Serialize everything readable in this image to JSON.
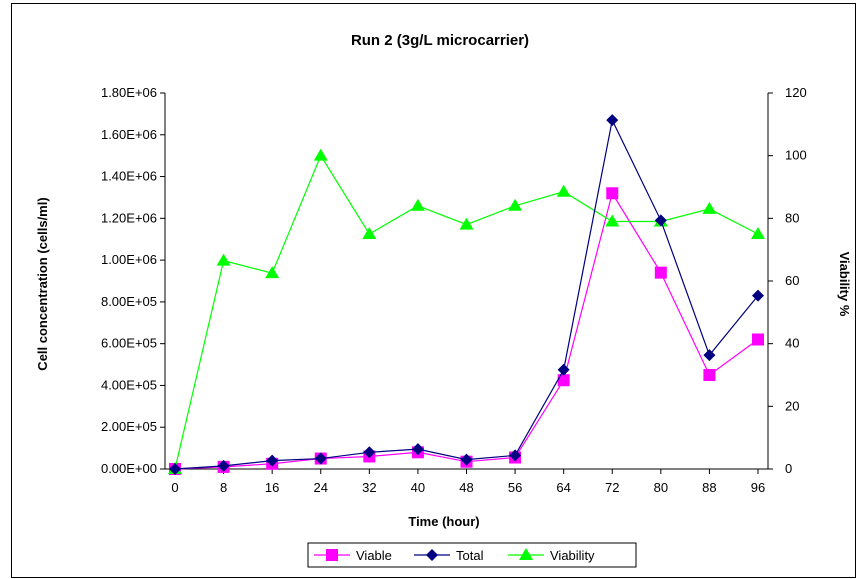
{
  "chart_data": {
    "type": "line",
    "title": "Run 2 (3g/L microcarrier)",
    "xlabel": "Time (hour)",
    "ylabel": "Cell concentration (cells/ml)",
    "y2label": "Viability %",
    "x": [
      0,
      8,
      16,
      24,
      32,
      40,
      48,
      56,
      64,
      72,
      80,
      88,
      96
    ],
    "xlim": [
      0,
      96
    ],
    "ylim": [
      0,
      1800000
    ],
    "y2lim": [
      0,
      120
    ],
    "y_ticks": [
      "0.00E+00",
      "2.00E+05",
      "4.00E+05",
      "6.00E+05",
      "8.00E+05",
      "1.00E+06",
      "1.20E+06",
      "1.40E+06",
      "1.60E+06",
      "1.80E+06"
    ],
    "y2_ticks": [
      "0",
      "20",
      "40",
      "60",
      "80",
      "100",
      "120"
    ],
    "x_ticks": [
      "0",
      "8",
      "16",
      "24",
      "32",
      "40",
      "48",
      "56",
      "64",
      "72",
      "80",
      "88",
      "96"
    ],
    "grid": false,
    "legend_position": "bottom",
    "series": [
      {
        "name": "Viable",
        "axis": "left",
        "color": "#ff00ff",
        "marker": "square",
        "values": [
          0,
          10000,
          25000,
          50000,
          60000,
          80000,
          35000,
          55000,
          425000,
          1320000,
          940000,
          450000,
          620000
        ]
      },
      {
        "name": "Total",
        "axis": "left",
        "color": "#000080",
        "marker": "diamond",
        "values": [
          0,
          15000,
          40000,
          50000,
          80000,
          95000,
          45000,
          65000,
          475000,
          1670000,
          1190000,
          545000,
          830000
        ]
      },
      {
        "name": "Viability",
        "axis": "right",
        "color": "#00ff00",
        "marker": "triangle",
        "values": [
          0,
          66.5,
          62.5,
          100,
          75,
          84,
          78,
          84,
          88.5,
          79,
          79,
          83,
          75
        ]
      }
    ]
  }
}
